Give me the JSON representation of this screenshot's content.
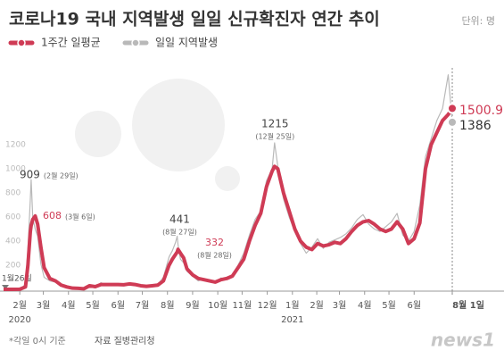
{
  "chart_data": {
    "type": "line",
    "title": "코로나19 국내 지역발생 일일 신규확진자 연간 추이",
    "unit": "단위: 명",
    "x": [
      0,
      10,
      20,
      27,
      30,
      33,
      34,
      36,
      39,
      42,
      46,
      50,
      57,
      64,
      71,
      78,
      85,
      92,
      99,
      106,
      113,
      120,
      127,
      134,
      141,
      148,
      155,
      162,
      169,
      176,
      183,
      190,
      197,
      204,
      208,
      212,
      214,
      215,
      218,
      222,
      226,
      233,
      240,
      247,
      254,
      261,
      268,
      275,
      282,
      289,
      296,
      303,
      310,
      317,
      324,
      331,
      334,
      338,
      345,
      352,
      359,
      366,
      373,
      380,
      387,
      394,
      401,
      408,
      415,
      422,
      429,
      436,
      443,
      450,
      457,
      464,
      471,
      478,
      485,
      492,
      499,
      506,
      513,
      520,
      527,
      534,
      541,
      548,
      553
    ],
    "series": [
      {
        "name": "일일 지역발생",
        "color": "#b9b9b9",
        "values": [
          0,
          1,
          2,
          40,
          330,
          750,
          909,
          590,
          500,
          440,
          210,
          100,
          70,
          60,
          30,
          15,
          8,
          6,
          2,
          30,
          18,
          55,
          35,
          45,
          40,
          30,
          50,
          40,
          25,
          30,
          25,
          40,
          100,
          270,
          320,
          390,
          441,
          370,
          250,
          220,
          150,
          110,
          70,
          90,
          60,
          55,
          95,
          80,
          120,
          200,
          300,
          450,
          580,
          650,
          900,
          1000,
          1215,
          1020,
          750,
          600,
          480,
          380,
          300,
          350,
          420,
          340,
          390,
          410,
          430,
          460,
          510,
          580,
          620,
          540,
          500,
          480,
          520,
          560,
          630,
          450,
          400,
          480,
          700,
          1100,
          1250,
          1400,
          1500,
          1780,
          1386
        ]
      },
      {
        "name": "1주간 일평균",
        "color": "#cf3b55",
        "values": [
          0,
          0,
          1,
          20,
          200,
          480,
          530,
          580,
          608,
          540,
          350,
          180,
          90,
          70,
          35,
          20,
          10,
          8,
          5,
          30,
          22,
          40,
          40,
          40,
          40,
          38,
          45,
          40,
          30,
          25,
          30,
          35,
          70,
          200,
          250,
          290,
          310,
          332,
          300,
          260,
          170,
          120,
          90,
          80,
          70,
          60,
          80,
          90,
          110,
          180,
          250,
          400,
          530,
          630,
          850,
          980,
          1020,
          1000,
          800,
          650,
          500,
          400,
          350,
          330,
          380,
          360,
          370,
          390,
          380,
          420,
          480,
          530,
          560,
          570,
          540,
          500,
          480,
          500,
          560,
          500,
          380,
          420,
          550,
          1000,
          1200,
          1300,
          1400,
          1450,
          1500.9
        ]
      }
    ],
    "xlim": [
      0,
      553
    ],
    "xticks": [
      {
        "value": 20,
        "label": "2월"
      },
      {
        "value": 49,
        "label": "3월"
      },
      {
        "value": 80,
        "label": "4월"
      },
      {
        "value": 110,
        "label": "5월"
      },
      {
        "value": 141,
        "label": "6월"
      },
      {
        "value": 171,
        "label": "7월"
      },
      {
        "value": 202,
        "label": "8월"
      },
      {
        "value": 233,
        "label": "9월"
      },
      {
        "value": 264,
        "label": "10월"
      },
      {
        "value": 294,
        "label": "11월"
      },
      {
        "value": 325,
        "label": "12월"
      },
      {
        "value": 356,
        "label": "1월"
      },
      {
        "value": 386,
        "label": "2월"
      },
      {
        "value": 414,
        "label": "3월"
      },
      {
        "value": 445,
        "label": "4월"
      },
      {
        "value": 475,
        "label": "5월"
      },
      {
        "value": 506,
        "label": "6월"
      },
      {
        "value": 553,
        "label": "8월 1일"
      }
    ],
    "year_labels": [
      "2020",
      "2021"
    ],
    "start_label": "1월26일",
    "ylim": [
      0,
      1800
    ],
    "yticks": [
      200,
      400,
      600,
      800,
      1000,
      1200
    ],
    "grid": false,
    "annotations": [
      {
        "text": "909",
        "note": "(2월 29일)"
      },
      {
        "text": "608",
        "note": "(3월 6일)"
      },
      {
        "text": "441",
        "note": "(8월 27일)"
      },
      {
        "text": "332",
        "note": "(8월 28일)"
      },
      {
        "text": "1215",
        "note": "(12월 25일)"
      },
      {
        "text": "1500.9"
      },
      {
        "text": "1386"
      }
    ],
    "footnote": "*각일 0시 기준",
    "source": "자료 질병관리청",
    "logo": "news1"
  }
}
